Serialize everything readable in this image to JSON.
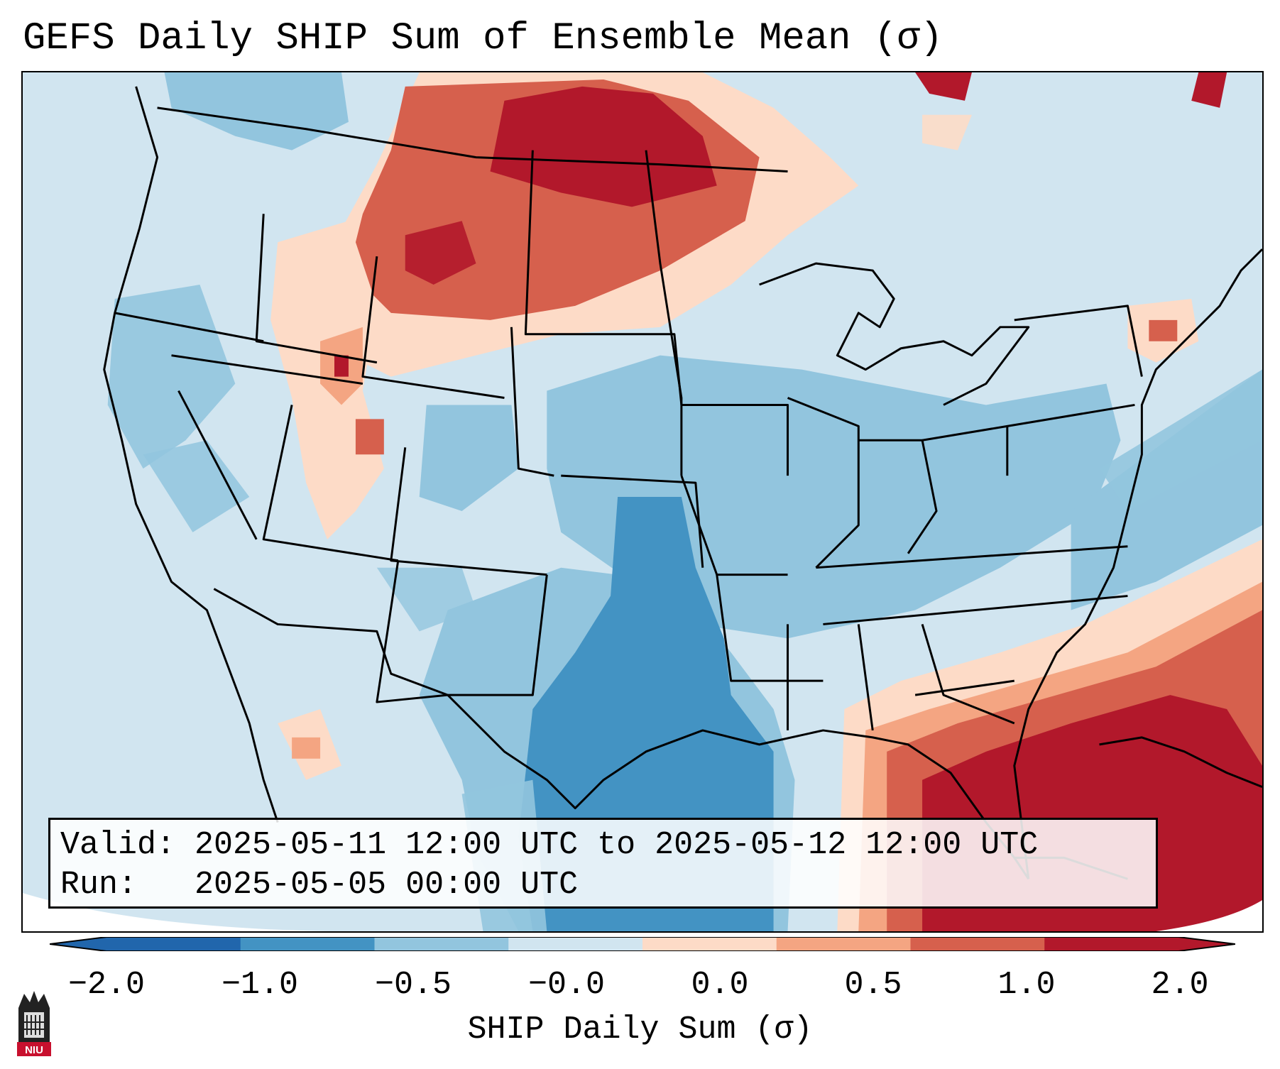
{
  "title": "GEFS Daily SHIP Sum of Ensemble Mean (σ)",
  "info": {
    "valid_label": "Valid:",
    "valid_value": "2025-05-11 12:00 UTC to 2025-05-12 12:00 UTC",
    "run_label": "Run:",
    "run_value": "2025-05-05 00:00 UTC"
  },
  "colorbar": {
    "label": "SHIP Daily Sum (σ)",
    "ticks": [
      "−2.0",
      "−1.0",
      "−0.5",
      "−0.0",
      "0.0",
      "0.5",
      "1.0",
      "2.0"
    ],
    "colors": [
      "#2166ac",
      "#4393c3",
      "#92c5de",
      "#d1e5f0",
      "#fddbc7",
      "#f4a582",
      "#d6604d",
      "#b2182b"
    ],
    "extend": "both"
  },
  "map": {
    "projection": "Lambert conformal, CONUS",
    "background_color": "#d1e5f0",
    "regions": [
      {
        "name": "Northern Plains / Montana",
        "value": 1.5
      },
      {
        "name": "Idaho / Utah",
        "value": 0.6
      },
      {
        "name": "Southern Plains / Texas",
        "value": -1.5
      },
      {
        "name": "Ohio & Tennessee Valleys",
        "value": -0.7
      },
      {
        "name": "Gulf of Mexico / Florida",
        "value": 2.0
      },
      {
        "name": "Western Atlantic",
        "value": -0.7
      }
    ]
  },
  "logo": {
    "name": "NIU logo",
    "text": "NIU"
  }
}
